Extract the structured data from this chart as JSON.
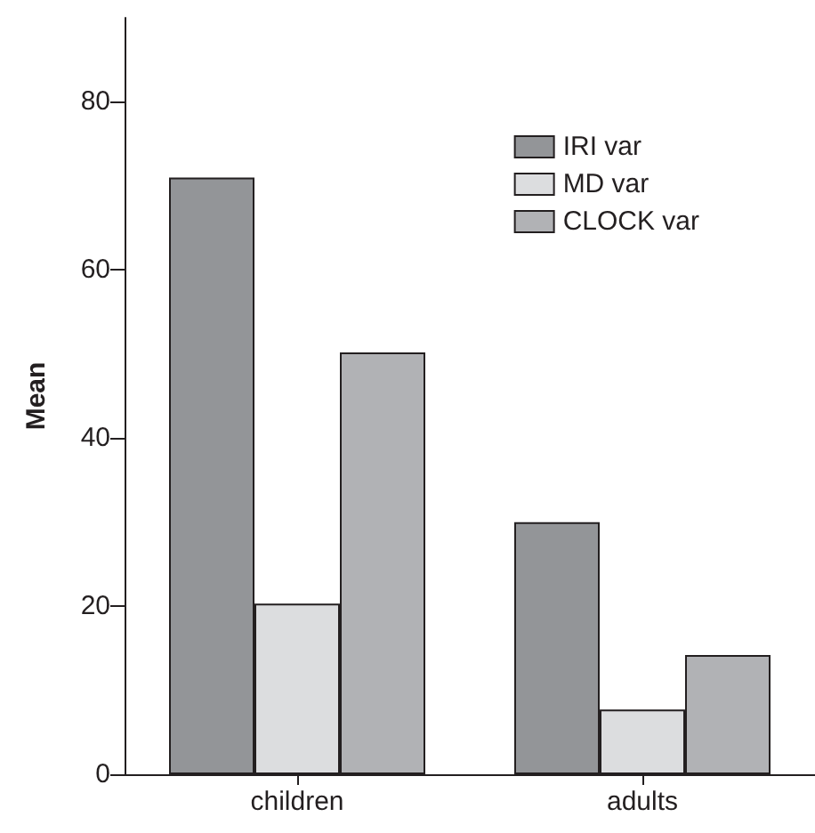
{
  "chart_data": {
    "type": "bar",
    "ylabel": "Mean",
    "categories": [
      "children",
      "adults"
    ],
    "series": [
      {
        "name": "IRI var",
        "color": "#939598",
        "values": [
          71.0,
          30.0
        ]
      },
      {
        "name": "MD var",
        "color": "#dcdddf",
        "values": [
          20.3,
          7.7
        ]
      },
      {
        "name": "CLOCK var",
        "color": "#b1b2b5",
        "values": [
          50.2,
          14.2
        ]
      }
    ],
    "ylim": [
      0,
      90
    ],
    "yticks": [
      0,
      20,
      40,
      60,
      80
    ],
    "grid": false,
    "legend": "top right"
  }
}
